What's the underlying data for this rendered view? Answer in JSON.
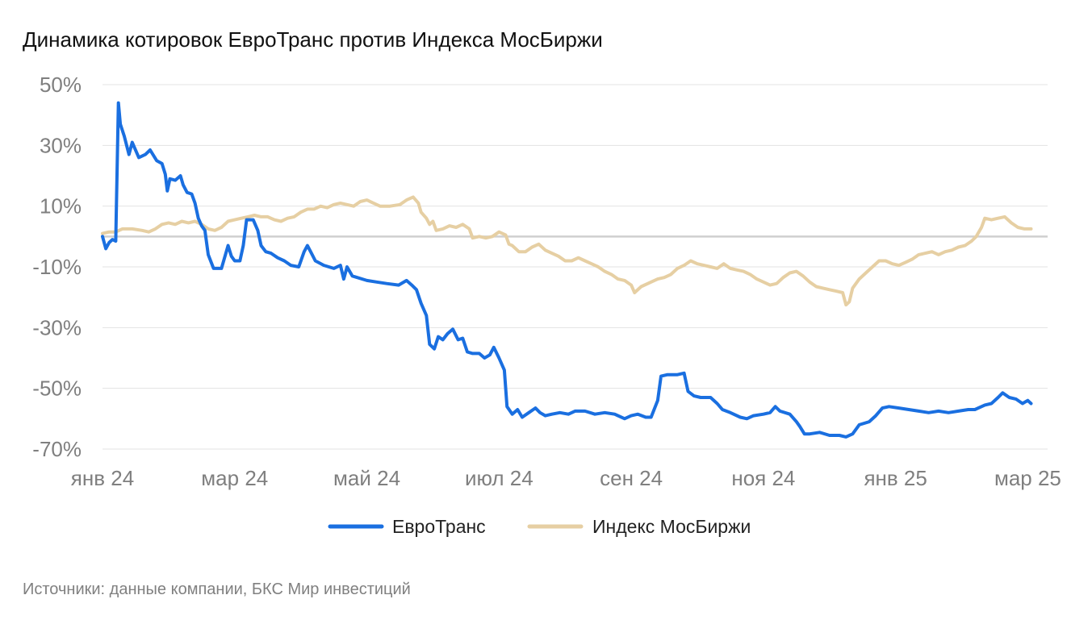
{
  "chart_data": {
    "type": "line",
    "title": "Динамика котировок ЕвроТранс против Индекса МосБиржи",
    "xlabel": "",
    "ylabel": "",
    "x_unit": "months since январь 2024",
    "x_ticks": [
      {
        "x": 0,
        "label": "янв 24"
      },
      {
        "x": 2,
        "label": "мар 24"
      },
      {
        "x": 4,
        "label": "май 24"
      },
      {
        "x": 6,
        "label": "июл 24"
      },
      {
        "x": 8,
        "label": "сен 24"
      },
      {
        "x": 10,
        "label": "ноя 24"
      },
      {
        "x": 12,
        "label": "янв 25"
      },
      {
        "x": 14,
        "label": "мар 25"
      }
    ],
    "y_ticks": [
      {
        "y": 50,
        "label": "50%"
      },
      {
        "y": 30,
        "label": "30%"
      },
      {
        "y": 10,
        "label": "10%"
      },
      {
        "y": -10,
        "label": "-10%"
      },
      {
        "y": -30,
        "label": "-30%"
      },
      {
        "y": -50,
        "label": "-50%"
      },
      {
        "y": -70,
        "label": "-70%"
      }
    ],
    "xlim": [
      0,
      14.3
    ],
    "ylim": [
      -70,
      50
    ],
    "grid": true,
    "zero_line": true,
    "legend_position": "bottom",
    "series": [
      {
        "name": "ЕвроТранс",
        "color": "#1a6fe0",
        "points": [
          [
            0.0,
            0.0
          ],
          [
            0.05,
            -4.0
          ],
          [
            0.1,
            -2.0
          ],
          [
            0.15,
            -1.0
          ],
          [
            0.2,
            -1.5
          ],
          [
            0.24,
            44.0
          ],
          [
            0.27,
            37.0
          ],
          [
            0.33,
            33.0
          ],
          [
            0.4,
            27.0
          ],
          [
            0.45,
            31.0
          ],
          [
            0.55,
            26.0
          ],
          [
            0.65,
            27.0
          ],
          [
            0.72,
            28.5
          ],
          [
            0.82,
            25.0
          ],
          [
            0.9,
            24.0
          ],
          [
            0.95,
            20.5
          ],
          [
            0.98,
            15.0
          ],
          [
            1.02,
            19.0
          ],
          [
            1.1,
            18.5
          ],
          [
            1.18,
            20.0
          ],
          [
            1.22,
            17.0
          ],
          [
            1.28,
            14.5
          ],
          [
            1.35,
            14.0
          ],
          [
            1.4,
            11.0
          ],
          [
            1.45,
            6.0
          ],
          [
            1.5,
            3.5
          ],
          [
            1.55,
            2.0
          ],
          [
            1.6,
            -6.0
          ],
          [
            1.68,
            -10.5
          ],
          [
            1.8,
            -10.5
          ],
          [
            1.9,
            -3.0
          ],
          [
            1.95,
            -6.5
          ],
          [
            2.0,
            -8.0
          ],
          [
            2.08,
            -8.0
          ],
          [
            2.13,
            -3.0
          ],
          [
            2.18,
            5.5
          ],
          [
            2.28,
            5.5
          ],
          [
            2.35,
            2.0
          ],
          [
            2.4,
            -3.0
          ],
          [
            2.47,
            -5.0
          ],
          [
            2.55,
            -5.5
          ],
          [
            2.65,
            -7.0
          ],
          [
            2.75,
            -8.0
          ],
          [
            2.85,
            -9.5
          ],
          [
            2.97,
            -10.0
          ],
          [
            3.05,
            -5.0
          ],
          [
            3.1,
            -3.0
          ],
          [
            3.15,
            -5.0
          ],
          [
            3.22,
            -8.0
          ],
          [
            3.35,
            -9.5
          ],
          [
            3.5,
            -10.5
          ],
          [
            3.6,
            -9.5
          ],
          [
            3.65,
            -14.0
          ],
          [
            3.7,
            -10.0
          ],
          [
            3.78,
            -13.0
          ],
          [
            4.0,
            -14.5
          ],
          [
            4.15,
            -15.0
          ],
          [
            4.3,
            -15.5
          ],
          [
            4.48,
            -16.0
          ],
          [
            4.6,
            -14.5
          ],
          [
            4.68,
            -16.0
          ],
          [
            4.75,
            -17.5
          ],
          [
            4.82,
            -22.0
          ],
          [
            4.9,
            -26.0
          ],
          [
            4.95,
            -35.5
          ],
          [
            5.02,
            -37.0
          ],
          [
            5.08,
            -33.0
          ],
          [
            5.15,
            -34.0
          ],
          [
            5.22,
            -32.0
          ],
          [
            5.3,
            -30.5
          ],
          [
            5.38,
            -34.0
          ],
          [
            5.45,
            -33.5
          ],
          [
            5.52,
            -38.0
          ],
          [
            5.6,
            -38.5
          ],
          [
            5.7,
            -38.5
          ],
          [
            5.78,
            -40.0
          ],
          [
            5.86,
            -39.0
          ],
          [
            5.92,
            -36.5
          ],
          [
            6.0,
            -40.0
          ],
          [
            6.08,
            -44.0
          ],
          [
            6.12,
            -56.0
          ],
          [
            6.2,
            -58.5
          ],
          [
            6.28,
            -57.0
          ],
          [
            6.35,
            -59.5
          ],
          [
            6.45,
            -58.0
          ],
          [
            6.55,
            -56.5
          ],
          [
            6.62,
            -58.0
          ],
          [
            6.7,
            -59.0
          ],
          [
            6.8,
            -58.5
          ],
          [
            6.92,
            -58.0
          ],
          [
            7.05,
            -58.5
          ],
          [
            7.15,
            -57.5
          ],
          [
            7.3,
            -57.5
          ],
          [
            7.45,
            -58.5
          ],
          [
            7.6,
            -58.0
          ],
          [
            7.75,
            -58.5
          ],
          [
            7.9,
            -60.0
          ],
          [
            8.0,
            -59.0
          ],
          [
            8.1,
            -58.5
          ],
          [
            8.22,
            -59.5
          ],
          [
            8.3,
            -59.5
          ],
          [
            8.4,
            -54.0
          ],
          [
            8.45,
            -46.0
          ],
          [
            8.55,
            -45.5
          ],
          [
            8.7,
            -45.5
          ],
          [
            8.8,
            -45.0
          ],
          [
            8.86,
            -51.0
          ],
          [
            8.95,
            -52.5
          ],
          [
            9.05,
            -53.0
          ],
          [
            9.2,
            -53.0
          ],
          [
            9.3,
            -55.0
          ],
          [
            9.38,
            -57.0
          ],
          [
            9.5,
            -58.0
          ],
          [
            9.65,
            -59.5
          ],
          [
            9.75,
            -60.0
          ],
          [
            9.85,
            -59.0
          ],
          [
            10.0,
            -58.5
          ],
          [
            10.1,
            -58.0
          ],
          [
            10.18,
            -56.0
          ],
          [
            10.25,
            -57.5
          ],
          [
            10.4,
            -58.5
          ],
          [
            10.5,
            -61.0
          ],
          [
            10.55,
            -62.5
          ],
          [
            10.62,
            -65.0
          ],
          [
            10.7,
            -65.0
          ],
          [
            10.85,
            -64.5
          ],
          [
            11.0,
            -65.5
          ],
          [
            11.15,
            -65.5
          ],
          [
            11.25,
            -66.0
          ],
          [
            11.35,
            -65.0
          ],
          [
            11.45,
            -62.0
          ],
          [
            11.6,
            -61.0
          ],
          [
            11.7,
            -59.0
          ],
          [
            11.8,
            -56.5
          ],
          [
            11.9,
            -56.0
          ],
          [
            12.05,
            -56.5
          ],
          [
            12.2,
            -57.0
          ],
          [
            12.35,
            -57.5
          ],
          [
            12.5,
            -58.0
          ],
          [
            12.65,
            -57.5
          ],
          [
            12.8,
            -58.0
          ],
          [
            12.95,
            -57.5
          ],
          [
            13.1,
            -57.0
          ],
          [
            13.2,
            -57.0
          ],
          [
            13.35,
            -55.5
          ],
          [
            13.45,
            -55.0
          ],
          [
            13.55,
            -53.0
          ],
          [
            13.62,
            -51.5
          ],
          [
            13.72,
            -53.0
          ],
          [
            13.82,
            -53.5
          ],
          [
            13.92,
            -55.0
          ],
          [
            14.0,
            -54.0
          ],
          [
            14.05,
            -55.0
          ]
        ]
      },
      {
        "name": "Индекс МосБиржи",
        "color": "#e6cfa3",
        "points": [
          [
            0.0,
            1.0
          ],
          [
            0.1,
            1.5
          ],
          [
            0.2,
            1.5
          ],
          [
            0.3,
            2.5
          ],
          [
            0.45,
            2.5
          ],
          [
            0.6,
            2.0
          ],
          [
            0.7,
            1.5
          ],
          [
            0.8,
            2.5
          ],
          [
            0.9,
            4.0
          ],
          [
            1.0,
            4.5
          ],
          [
            1.1,
            4.0
          ],
          [
            1.2,
            5.0
          ],
          [
            1.3,
            4.5
          ],
          [
            1.4,
            5.0
          ],
          [
            1.5,
            4.0
          ],
          [
            1.6,
            2.5
          ],
          [
            1.7,
            2.0
          ],
          [
            1.8,
            3.0
          ],
          [
            1.9,
            5.0
          ],
          [
            2.0,
            5.5
          ],
          [
            2.1,
            6.0
          ],
          [
            2.2,
            6.5
          ],
          [
            2.3,
            7.0
          ],
          [
            2.4,
            6.5
          ],
          [
            2.5,
            6.5
          ],
          [
            2.6,
            5.5
          ],
          [
            2.7,
            5.0
          ],
          [
            2.8,
            6.0
          ],
          [
            2.9,
            6.5
          ],
          [
            3.0,
            8.0
          ],
          [
            3.1,
            9.0
          ],
          [
            3.2,
            9.0
          ],
          [
            3.3,
            10.0
          ],
          [
            3.4,
            9.5
          ],
          [
            3.5,
            10.5
          ],
          [
            3.6,
            11.0
          ],
          [
            3.7,
            10.5
          ],
          [
            3.8,
            10.0
          ],
          [
            3.9,
            11.5
          ],
          [
            4.0,
            12.0
          ],
          [
            4.1,
            11.0
          ],
          [
            4.2,
            10.0
          ],
          [
            4.35,
            10.0
          ],
          [
            4.5,
            10.5
          ],
          [
            4.6,
            12.0
          ],
          [
            4.7,
            13.0
          ],
          [
            4.78,
            11.0
          ],
          [
            4.82,
            8.0
          ],
          [
            4.9,
            6.0
          ],
          [
            4.95,
            4.0
          ],
          [
            5.0,
            5.0
          ],
          [
            5.05,
            2.0
          ],
          [
            5.15,
            2.5
          ],
          [
            5.25,
            3.5
          ],
          [
            5.35,
            3.0
          ],
          [
            5.45,
            4.0
          ],
          [
            5.55,
            2.5
          ],
          [
            5.6,
            -0.5
          ],
          [
            5.7,
            0.0
          ],
          [
            5.8,
            -0.5
          ],
          [
            5.9,
            0.0
          ],
          [
            6.0,
            1.5
          ],
          [
            6.1,
            0.5
          ],
          [
            6.15,
            -2.5
          ],
          [
            6.2,
            -3.0
          ],
          [
            6.3,
            -5.0
          ],
          [
            6.4,
            -5.0
          ],
          [
            6.5,
            -3.5
          ],
          [
            6.6,
            -2.5
          ],
          [
            6.7,
            -4.5
          ],
          [
            6.8,
            -5.5
          ],
          [
            6.9,
            -6.5
          ],
          [
            7.0,
            -8.0
          ],
          [
            7.1,
            -8.0
          ],
          [
            7.2,
            -7.0
          ],
          [
            7.3,
            -8.0
          ],
          [
            7.4,
            -9.0
          ],
          [
            7.5,
            -10.0
          ],
          [
            7.6,
            -11.5
          ],
          [
            7.7,
            -12.5
          ],
          [
            7.8,
            -14.0
          ],
          [
            7.9,
            -14.5
          ],
          [
            8.0,
            -16.0
          ],
          [
            8.05,
            -18.5
          ],
          [
            8.15,
            -16.5
          ],
          [
            8.3,
            -15.0
          ],
          [
            8.4,
            -14.0
          ],
          [
            8.5,
            -13.5
          ],
          [
            8.6,
            -12.5
          ],
          [
            8.7,
            -10.5
          ],
          [
            8.8,
            -9.5
          ],
          [
            8.9,
            -8.0
          ],
          [
            9.0,
            -9.0
          ],
          [
            9.1,
            -9.5
          ],
          [
            9.2,
            -10.0
          ],
          [
            9.3,
            -10.5
          ],
          [
            9.4,
            -9.0
          ],
          [
            9.5,
            -10.5
          ],
          [
            9.6,
            -11.0
          ],
          [
            9.7,
            -11.5
          ],
          [
            9.8,
            -12.5
          ],
          [
            9.9,
            -14.0
          ],
          [
            10.0,
            -15.0
          ],
          [
            10.1,
            -16.0
          ],
          [
            10.2,
            -15.5
          ],
          [
            10.3,
            -13.5
          ],
          [
            10.4,
            -12.0
          ],
          [
            10.5,
            -11.5
          ],
          [
            10.6,
            -13.0
          ],
          [
            10.7,
            -15.0
          ],
          [
            10.8,
            -16.5
          ],
          [
            10.9,
            -17.0
          ],
          [
            11.0,
            -17.5
          ],
          [
            11.1,
            -18.0
          ],
          [
            11.2,
            -18.5
          ],
          [
            11.25,
            -22.5
          ],
          [
            11.3,
            -21.5
          ],
          [
            11.35,
            -17.0
          ],
          [
            11.45,
            -14.0
          ],
          [
            11.55,
            -12.0
          ],
          [
            11.65,
            -10.0
          ],
          [
            11.75,
            -8.0
          ],
          [
            11.85,
            -8.0
          ],
          [
            11.95,
            -9.0
          ],
          [
            12.05,
            -9.5
          ],
          [
            12.15,
            -8.5
          ],
          [
            12.25,
            -7.5
          ],
          [
            12.35,
            -6.0
          ],
          [
            12.45,
            -5.5
          ],
          [
            12.55,
            -5.0
          ],
          [
            12.65,
            -6.0
          ],
          [
            12.75,
            -5.0
          ],
          [
            12.85,
            -4.5
          ],
          [
            12.95,
            -3.5
          ],
          [
            13.05,
            -3.0
          ],
          [
            13.15,
            -1.5
          ],
          [
            13.22,
            0.0
          ],
          [
            13.3,
            3.0
          ],
          [
            13.35,
            6.0
          ],
          [
            13.45,
            5.5
          ],
          [
            13.55,
            6.0
          ],
          [
            13.65,
            6.5
          ],
          [
            13.75,
            4.5
          ],
          [
            13.85,
            3.0
          ],
          [
            13.95,
            2.5
          ],
          [
            14.05,
            2.5
          ]
        ]
      }
    ]
  },
  "footer": {
    "source": "Источники: данные компании, БКС Мир инвестиций"
  }
}
